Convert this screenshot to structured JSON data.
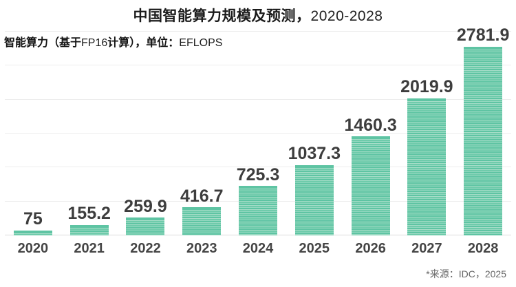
{
  "chart_data": {
    "type": "bar",
    "title": "中国智能算力规模及预测，2020-2028",
    "title_bold_part": "中国智能算力规模及预测，",
    "title_regular_part": "2020-2028",
    "subtitle": "智能算力（基于FP16计算），单位：EFLOPS",
    "subtitle_parts": {
      "p1": "智能算力（基于",
      "p2": "FP16",
      "p3": "计算），单位：",
      "p4": "EFLOPS"
    },
    "unit": "EFLOPS",
    "categories": [
      "2020",
      "2021",
      "2022",
      "2023",
      "2024",
      "2025",
      "2026",
      "2027",
      "2028"
    ],
    "values": [
      75,
      155.2,
      259.9,
      416.7,
      725.3,
      1037.3,
      1460.3,
      2019.9,
      2781.9
    ],
    "value_labels": [
      "75",
      "155.2",
      "259.9",
      "416.7",
      "725.3",
      "1037.3",
      "1460.3",
      "2019.9",
      "2781.9"
    ],
    "xlabel": "",
    "ylabel": "",
    "ylim": [
      0,
      3000
    ],
    "gridline_interval": 500,
    "grid": true,
    "legend": false,
    "source": "*来源：IDC，2025",
    "colors": {
      "bar_base": "#5ec4a3",
      "bar_stripe_light": "#a6ddc8",
      "gridline": "#ececec",
      "baseline": "#d9d9d9",
      "title_text": "#1b1b1b",
      "value_text": "#3d3d3d",
      "year_text": "#454545",
      "source_text": "#666666"
    }
  }
}
